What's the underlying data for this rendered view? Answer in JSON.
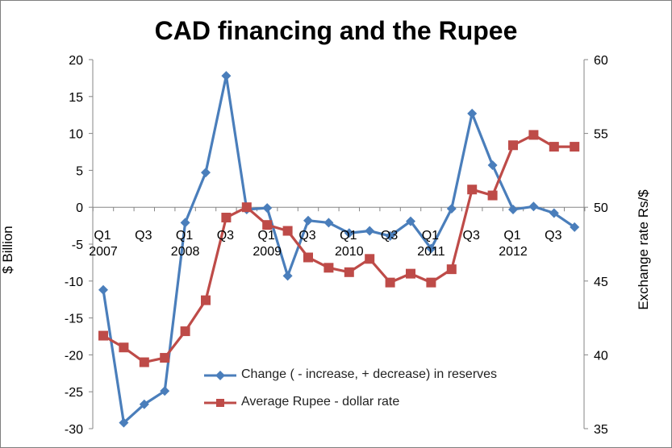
{
  "chart_data": {
    "type": "line",
    "title": "CAD financing and the Rupee",
    "ylabel_left": "$ Billion",
    "ylabel_right": "Exchange rate Rs/$",
    "ylim_left": [
      -30,
      20
    ],
    "ylim_right": [
      35,
      60
    ],
    "yticks_left": [
      "20",
      "15",
      "10",
      "5",
      "0",
      "-5",
      "-10",
      "-15",
      "-20",
      "-25",
      "-30"
    ],
    "yticks_right": [
      "60",
      "55",
      "50",
      "45",
      "40",
      "35"
    ],
    "x_ticks": [
      {
        "index": 0,
        "label": "Q1"
      },
      {
        "index": 2,
        "label": "Q3"
      },
      {
        "index": 4,
        "label": "Q1"
      },
      {
        "index": 6,
        "label": "Q3"
      },
      {
        "index": 8,
        "label": "Q1"
      },
      {
        "index": 10,
        "label": "Q3"
      },
      {
        "index": 12,
        "label": "Q1"
      },
      {
        "index": 14,
        "label": "Q3"
      },
      {
        "index": 16,
        "label": "Q1"
      },
      {
        "index": 18,
        "label": "Q3"
      },
      {
        "index": 20,
        "label": "Q1"
      },
      {
        "index": 22,
        "label": "Q3"
      }
    ],
    "year_labels": [
      {
        "index": 0,
        "label": "2007"
      },
      {
        "index": 4,
        "label": "2008"
      },
      {
        "index": 8,
        "label": "2009"
      },
      {
        "index": 12,
        "label": "2010"
      },
      {
        "index": 16,
        "label": "2011"
      },
      {
        "index": 20,
        "label": "2012"
      }
    ],
    "categories_count": 24,
    "series": [
      {
        "name": "Change ( - increase, + decrease) in reserves",
        "axis": "left",
        "color": "#4a7ebb",
        "marker": "diamond",
        "values": [
          -11.2,
          -29.2,
          -26.7,
          -24.9,
          -2.1,
          4.7,
          17.8,
          -0.3,
          -0.1,
          -9.3,
          -1.8,
          -2.1,
          -3.5,
          -3.2,
          -3.9,
          -1.9,
          -5.6,
          -0.2,
          12.7,
          5.7,
          -0.3,
          0.1,
          -0.8,
          -2.7
        ]
      },
      {
        "name": "Average Rupee - dollar rate",
        "axis": "right",
        "color": "#be4b48",
        "marker": "square",
        "values": [
          41.3,
          40.5,
          39.5,
          39.8,
          41.6,
          43.7,
          49.3,
          50.0,
          48.8,
          48.4,
          46.6,
          45.9,
          45.6,
          46.5,
          44.9,
          45.5,
          44.9,
          45.8,
          51.2,
          50.8,
          54.2,
          54.9,
          54.1,
          54.1
        ]
      }
    ],
    "legend_position": "bottom-center",
    "grid": false
  }
}
